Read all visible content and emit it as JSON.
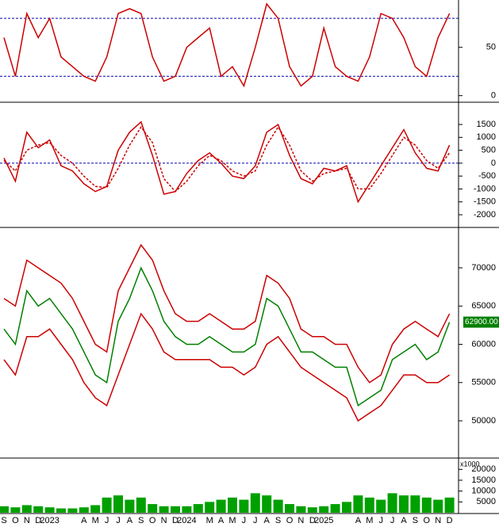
{
  "chart_data": [
    {
      "type": "line",
      "ylim": [
        -6,
        99
      ],
      "yticks": [
        0,
        50
      ],
      "levels": [
        20,
        80
      ],
      "level_color": "#0000aa",
      "series": [
        {
          "color": "#cc0000",
          "values": [
            60,
            20,
            85,
            60,
            80,
            40,
            30,
            20,
            15,
            40,
            85,
            90,
            85,
            40,
            15,
            20,
            50,
            60,
            70,
            20,
            30,
            10,
            50,
            95,
            80,
            30,
            10,
            20,
            70,
            30,
            20,
            15,
            40,
            85,
            80,
            60,
            30,
            20,
            60,
            85
          ]
        }
      ]
    },
    {
      "type": "line",
      "ylim": [
        -2430,
        2270
      ],
      "yticks": [
        -2000,
        -1500,
        -1000,
        -500,
        0,
        500,
        1000,
        1500
      ],
      "levels": [
        0
      ],
      "level_color": "#0000aa",
      "series": [
        {
          "color": "#cc0000",
          "values": [
            200,
            -700,
            1200,
            600,
            900,
            -100,
            -300,
            -800,
            -1100,
            -900,
            500,
            1200,
            1600,
            300,
            -1200,
            -1100,
            -400,
            100,
            400,
            0,
            -500,
            -600,
            -100,
            1200,
            1500,
            300,
            -600,
            -800,
            -200,
            -300,
            -100,
            -1500,
            -800,
            -100,
            600,
            1300,
            400,
            -200,
            -300,
            700
          ]
        },
        {
          "color": "#cc0000",
          "dashed": true,
          "values": [
            100,
            -300,
            500,
            700,
            800,
            300,
            0,
            -500,
            -900,
            -950,
            -200,
            700,
            1400,
            800,
            -600,
            -1100,
            -700,
            -100,
            300,
            100,
            -300,
            -500,
            -300,
            700,
            1400,
            700,
            -300,
            -700,
            -400,
            -300,
            -200,
            -1000,
            -1000,
            -400,
            300,
            1000,
            700,
            100,
            -200,
            400
          ]
        }
      ]
    },
    {
      "type": "line",
      "ylim": [
        45130,
        74970
      ],
      "yticks": [
        50000,
        55000,
        60000,
        65000,
        70000
      ],
      "last_value_label": "62900.00",
      "series": [
        {
          "color": "#cc0000",
          "values": [
            66000,
            65000,
            71000,
            70000,
            69000,
            68000,
            66000,
            63000,
            60000,
            59000,
            67000,
            70000,
            73000,
            71000,
            67000,
            64000,
            63000,
            63000,
            64000,
            63000,
            62000,
            62000,
            63000,
            69000,
            68000,
            66000,
            62000,
            61000,
            61000,
            60000,
            60000,
            57000,
            55000,
            56000,
            60000,
            62000,
            63000,
            62000,
            61000,
            64000
          ]
        },
        {
          "color": "#cc0000",
          "values": [
            58000,
            56000,
            61000,
            61000,
            62000,
            60000,
            58000,
            55000,
            53000,
            52000,
            56000,
            60000,
            64000,
            62000,
            59000,
            58000,
            58000,
            58000,
            58000,
            57000,
            57000,
            56000,
            57000,
            60000,
            61000,
            59000,
            57000,
            56000,
            55000,
            54000,
            53000,
            50000,
            51000,
            52000,
            54000,
            56000,
            56000,
            55000,
            55000,
            56000
          ]
        },
        {
          "color": "#008000",
          "values": [
            62000,
            60000,
            67000,
            65000,
            66000,
            64000,
            62000,
            59000,
            56000,
            55000,
            63000,
            66000,
            70000,
            67000,
            63000,
            61000,
            60000,
            60000,
            61000,
            60000,
            59000,
            59000,
            60000,
            66000,
            65000,
            62000,
            59000,
            59000,
            58000,
            57000,
            57000,
            52000,
            53000,
            54000,
            58000,
            59000,
            60000,
            58000,
            59000,
            62900
          ]
        }
      ]
    },
    {
      "type": "bar",
      "ylim": [
        0,
        24500
      ],
      "yticks": [
        5000,
        10000,
        15000,
        20000
      ],
      "unit": "x1000",
      "color": "#00a000",
      "categories": [
        "S",
        "O",
        "N",
        "D",
        "2023",
        null,
        null,
        "A",
        "M",
        "J",
        "J",
        "A",
        "S",
        "O",
        "N",
        "D",
        "2024",
        null,
        "M",
        "A",
        "M",
        "J",
        "J",
        "A",
        "S",
        "O",
        "N",
        "D",
        "2025",
        null,
        null,
        "A",
        "M",
        "J",
        "J",
        "A",
        "S",
        "O",
        "N",
        "D"
      ],
      "values": [
        3000,
        2500,
        3500,
        3000,
        2500,
        2000,
        2000,
        2500,
        3500,
        7000,
        8000,
        6000,
        7000,
        4000,
        3000,
        3000,
        3000,
        4000,
        5000,
        6000,
        7000,
        6000,
        9000,
        8000,
        6000,
        4000,
        3000,
        2500,
        3000,
        4000,
        5000,
        8000,
        7000,
        6000,
        9000,
        8000,
        8000,
        7000,
        6000,
        7000
      ]
    }
  ]
}
